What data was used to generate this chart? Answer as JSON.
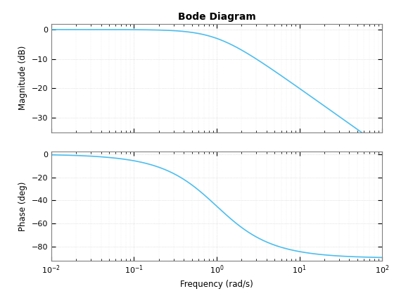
{
  "title": "Bode Diagram",
  "xlabel": "Frequency (rad/s)",
  "ylabel_mag": "Magnitude (dB)",
  "ylabel_phase": "Phase (deg)",
  "freq_min": 0.01,
  "freq_max": 100,
  "mag_ylim": [
    -35,
    2
  ],
  "mag_yticks": [
    0,
    -10,
    -20,
    -30
  ],
  "phase_ylim": [
    -92,
    2
  ],
  "phase_yticks": [
    0,
    -20,
    -40,
    -60,
    -80
  ],
  "line_color": "#4DBEEE",
  "line_width": 1.2,
  "background_color": "#FFFFFF",
  "title_fontsize": 10,
  "label_fontsize": 8.5,
  "tick_fontsize": 8,
  "num": [
    1.0
  ],
  "den": [
    1.0,
    1.0
  ]
}
